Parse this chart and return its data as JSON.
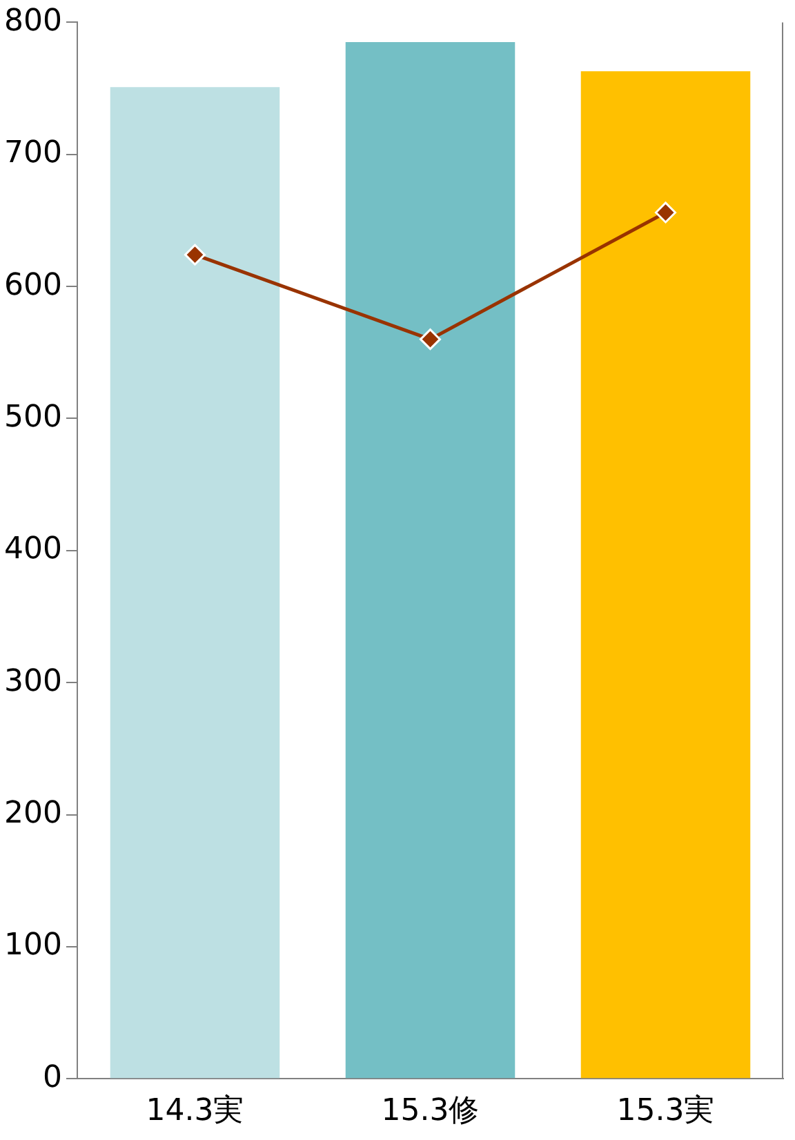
{
  "chart_data": {
    "type": "bar",
    "categories": [
      "14.3実",
      "15.3修",
      "15.3実"
    ],
    "series": [
      {
        "colors": [
          "#bde0e3",
          "#74bfc5",
          "#ffc000"
        ],
        "values": [
          751,
          785,
          763
        ]
      },
      {
        "type": "line",
        "color": "#993300",
        "values": [
          624,
          560,
          656
        ],
        "marker": "diamond"
      }
    ],
    "ylim": [
      0,
      800
    ],
    "yticks": [
      0,
      100,
      200,
      300,
      400,
      500,
      600,
      700,
      800
    ],
    "grid": false,
    "legend": false
  }
}
